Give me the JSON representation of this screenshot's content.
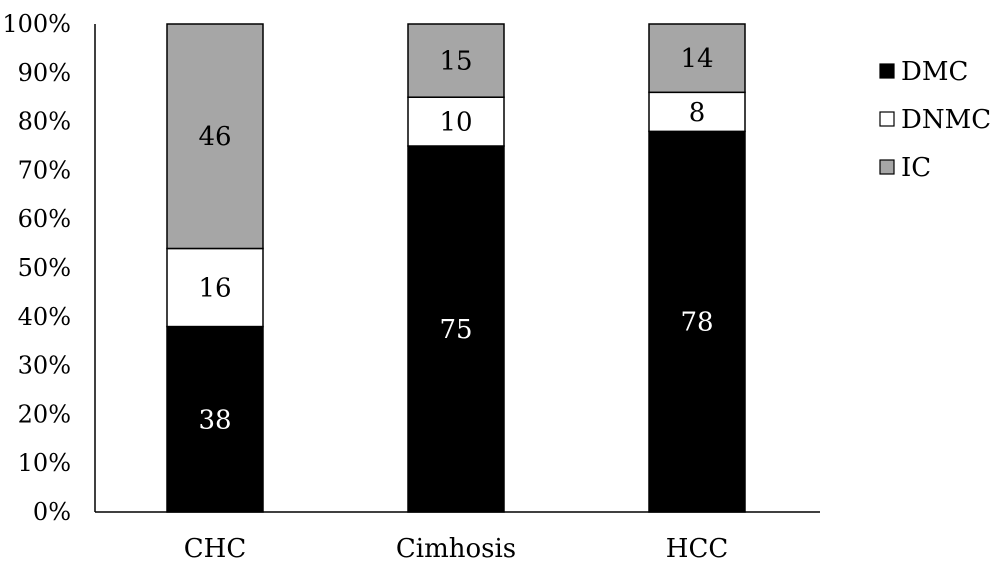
{
  "chart_data": {
    "type": "bar",
    "stacked": true,
    "percent_axis": true,
    "categories": [
      "CHC",
      "Cimhosis",
      "HCC"
    ],
    "series": [
      {
        "name": "DMC",
        "values": [
          38,
          75,
          78
        ],
        "color": "#000000",
        "label_color": "#ffffff"
      },
      {
        "name": "DNMC",
        "values": [
          16,
          10,
          8
        ],
        "color": "#ffffff",
        "label_color": "#000000"
      },
      {
        "name": "IC",
        "values": [
          46,
          15,
          14
        ],
        "color": "#a6a6a6",
        "label_color": "#000000"
      }
    ],
    "y_ticks": [
      "0%",
      "10%",
      "20%",
      "30%",
      "40%",
      "50%",
      "60%",
      "70%",
      "80%",
      "90%",
      "100%"
    ],
    "ylim": [
      0,
      100
    ],
    "title": "",
    "xlabel": "",
    "ylabel": "",
    "grid": false,
    "legend_position": "right"
  }
}
